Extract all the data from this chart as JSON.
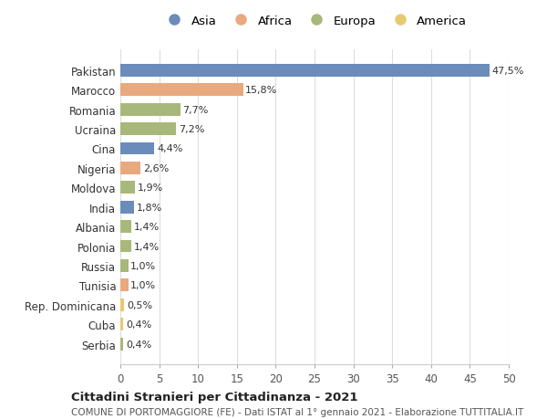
{
  "countries": [
    "Pakistan",
    "Marocco",
    "Romania",
    "Ucraina",
    "Cina",
    "Nigeria",
    "Moldova",
    "India",
    "Albania",
    "Polonia",
    "Russia",
    "Tunisia",
    "Rep. Dominicana",
    "Cuba",
    "Serbia"
  ],
  "values": [
    47.5,
    15.8,
    7.7,
    7.2,
    4.4,
    2.6,
    1.9,
    1.8,
    1.4,
    1.4,
    1.0,
    1.0,
    0.5,
    0.4,
    0.4
  ],
  "labels": [
    "47,5%",
    "15,8%",
    "7,7%",
    "7,2%",
    "4,4%",
    "2,6%",
    "1,9%",
    "1,8%",
    "1,4%",
    "1,4%",
    "1,0%",
    "1,0%",
    "0,5%",
    "0,4%",
    "0,4%"
  ],
  "continents": [
    "Asia",
    "Africa",
    "Europa",
    "Europa",
    "Asia",
    "Africa",
    "Europa",
    "Asia",
    "Europa",
    "Europa",
    "Europa",
    "Africa",
    "America",
    "America",
    "Europa"
  ],
  "colors": {
    "Asia": "#6b8cba",
    "Africa": "#e8a97e",
    "Europa": "#a8b87a",
    "America": "#e8c96e"
  },
  "legend_order": [
    "Asia",
    "Africa",
    "Europa",
    "America"
  ],
  "xlim": [
    0,
    50
  ],
  "xticks": [
    0,
    5,
    10,
    15,
    20,
    25,
    30,
    35,
    40,
    45,
    50
  ],
  "title": "Cittadini Stranieri per Cittadinanza - 2021",
  "subtitle": "COMUNE DI PORTOMAGGIORE (FE) - Dati ISTAT al 1° gennaio 2021 - Elaborazione TUTTITALIA.IT",
  "background_color": "#ffffff",
  "grid_color": "#dddddd",
  "bar_height": 0.65,
  "figsize": [
    6.0,
    4.6
  ],
  "dpi": 100
}
